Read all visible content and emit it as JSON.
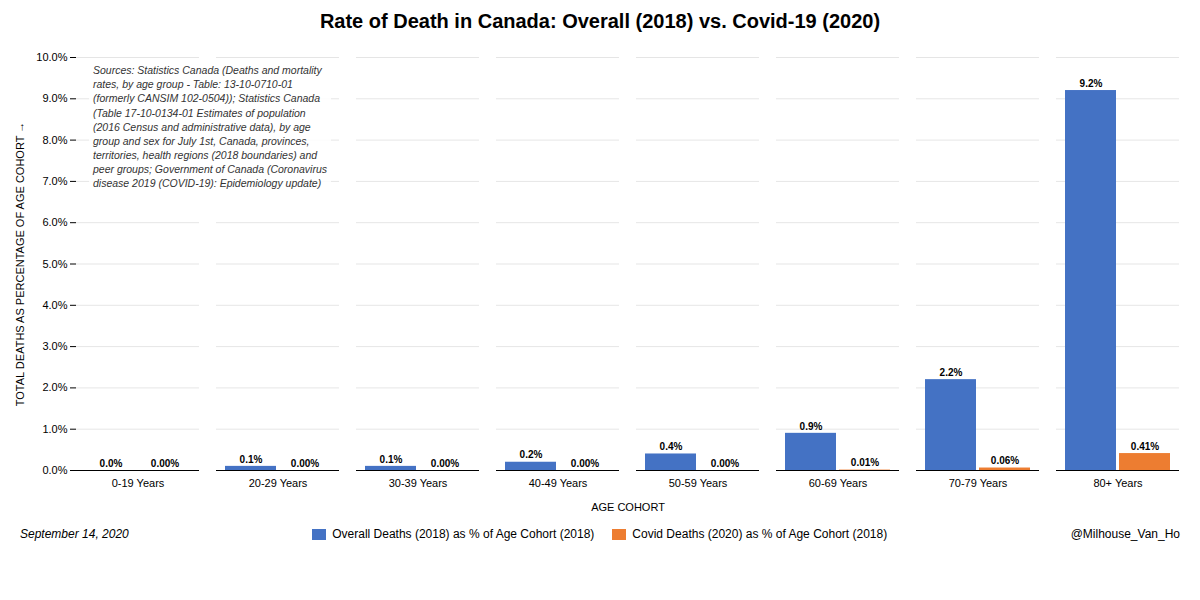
{
  "chart_data": {
    "type": "bar",
    "title": "Rate of Death in Canada: Overall (2018) vs. Covid-19 (2020)",
    "xlabel": "AGE COHORT",
    "ylabel": "TOTAL DEATHS AS PERCENTAGE OF AGE COHORT",
    "categories": [
      "0-19 Years",
      "20-29 Years",
      "30-39 Years",
      "40-49 Years",
      "50-59 Years",
      "60-69 Years",
      "70-79 Years",
      "80+ Years"
    ],
    "series": [
      {
        "name": "Overall Deaths (2018) as % of Age Cohort (2018)",
        "color": "#4472C4",
        "values": [
          0.0,
          0.1,
          0.1,
          0.2,
          0.4,
          0.9,
          2.2,
          9.2
        ],
        "value_labels": [
          "0.0%",
          "0.1%",
          "0.1%",
          "0.2%",
          "0.4%",
          "0.9%",
          "2.2%",
          "9.2%"
        ]
      },
      {
        "name": "Covid Deaths (2020) as % of Age Cohort (2018)",
        "color": "#ED7D31",
        "values": [
          0.0,
          0.0,
          0.0,
          0.0,
          0.0,
          0.01,
          0.06,
          0.41
        ],
        "value_labels": [
          "0.00%",
          "0.00%",
          "0.00%",
          "0.00%",
          "0.00%",
          "0.01%",
          "0.06%",
          "0.41%"
        ]
      }
    ],
    "ylim": [
      0.0,
      10.0
    ],
    "yticks": [
      {
        "value": 0.0,
        "label": "0.0%"
      },
      {
        "value": 1.0,
        "label": "1.0%"
      },
      {
        "value": 2.0,
        "label": "2.0%"
      },
      {
        "value": 3.0,
        "label": "3.0%"
      },
      {
        "value": 4.0,
        "label": "4.0%"
      },
      {
        "value": 5.0,
        "label": "5.0%"
      },
      {
        "value": 6.0,
        "label": "6.0%"
      },
      {
        "value": 7.0,
        "label": "7.0%"
      },
      {
        "value": 8.0,
        "label": "8.0%"
      },
      {
        "value": 9.0,
        "label": "9.0%"
      },
      {
        "value": 10.0,
        "label": "10.0%"
      }
    ],
    "grid": true,
    "data_labels": true,
    "legend": "bottom",
    "annotations": [
      "Sources: Statistics Canada (Deaths and mortality\nrates, by age group - Table: 13-10-0710-01\n(formerly CANSIM 102-0504)); Statistics Canada\n(Table 17-10-0134-01 Estimates of population\n(2016 Census and administrative data), by age\ngroup and sex for July 1st, Canada, provinces,\nterritories, health regions (2018 boundaries) and\npeer groups; Government of Canada (Coronavirus\ndisease 2019 (COVID-19): Epidemiology update)",
      "September 14, 2020",
      "@Milhouse_Van_Ho"
    ]
  }
}
